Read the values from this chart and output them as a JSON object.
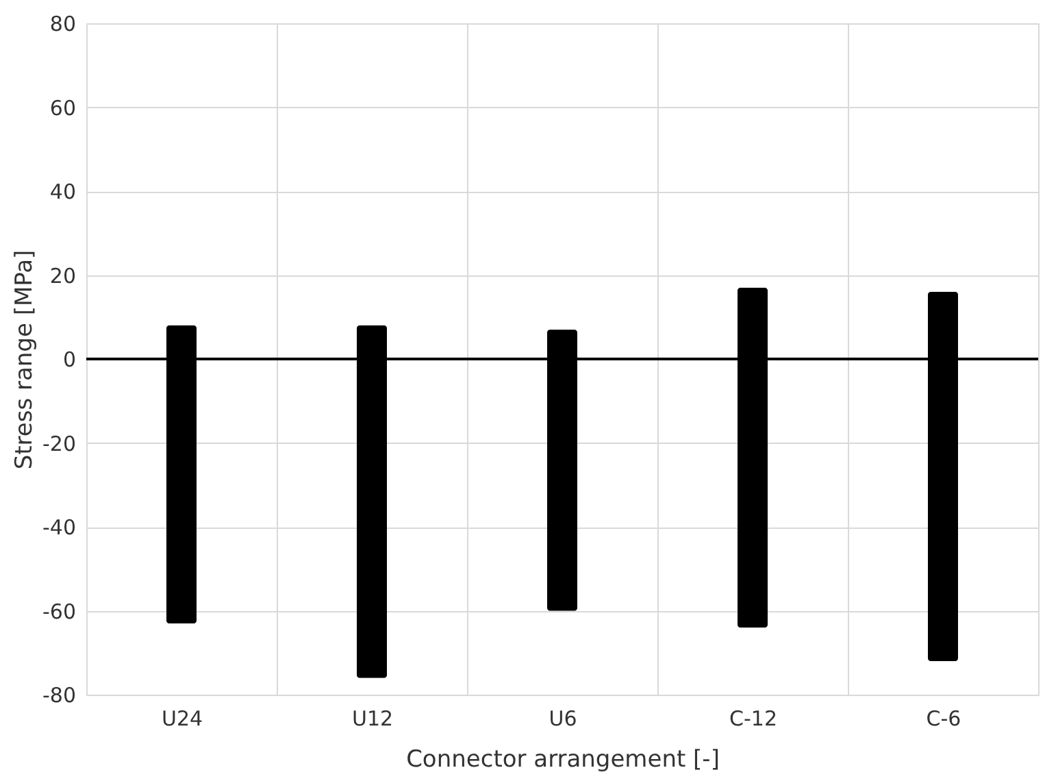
{
  "chart_data": {
    "type": "bar",
    "xlabel": "Connector arrangement [-]",
    "ylabel": "Stress range [MPa]",
    "categories": [
      "U24",
      "U12",
      "U6",
      "C-12",
      "C-6"
    ],
    "base": [
      -63,
      -76,
      -60,
      -64,
      -72
    ],
    "values": [
      71,
      84,
      67,
      81,
      88
    ],
    "color": "#000000",
    "ylim": [
      -80,
      80
    ],
    "yticks": [
      -80,
      -60,
      -40,
      -20,
      0,
      20,
      40,
      60,
      80
    ],
    "grid": true,
    "ref_lines": [
      {
        "axis": "y",
        "value": 0,
        "color": "#000000"
      }
    ]
  }
}
